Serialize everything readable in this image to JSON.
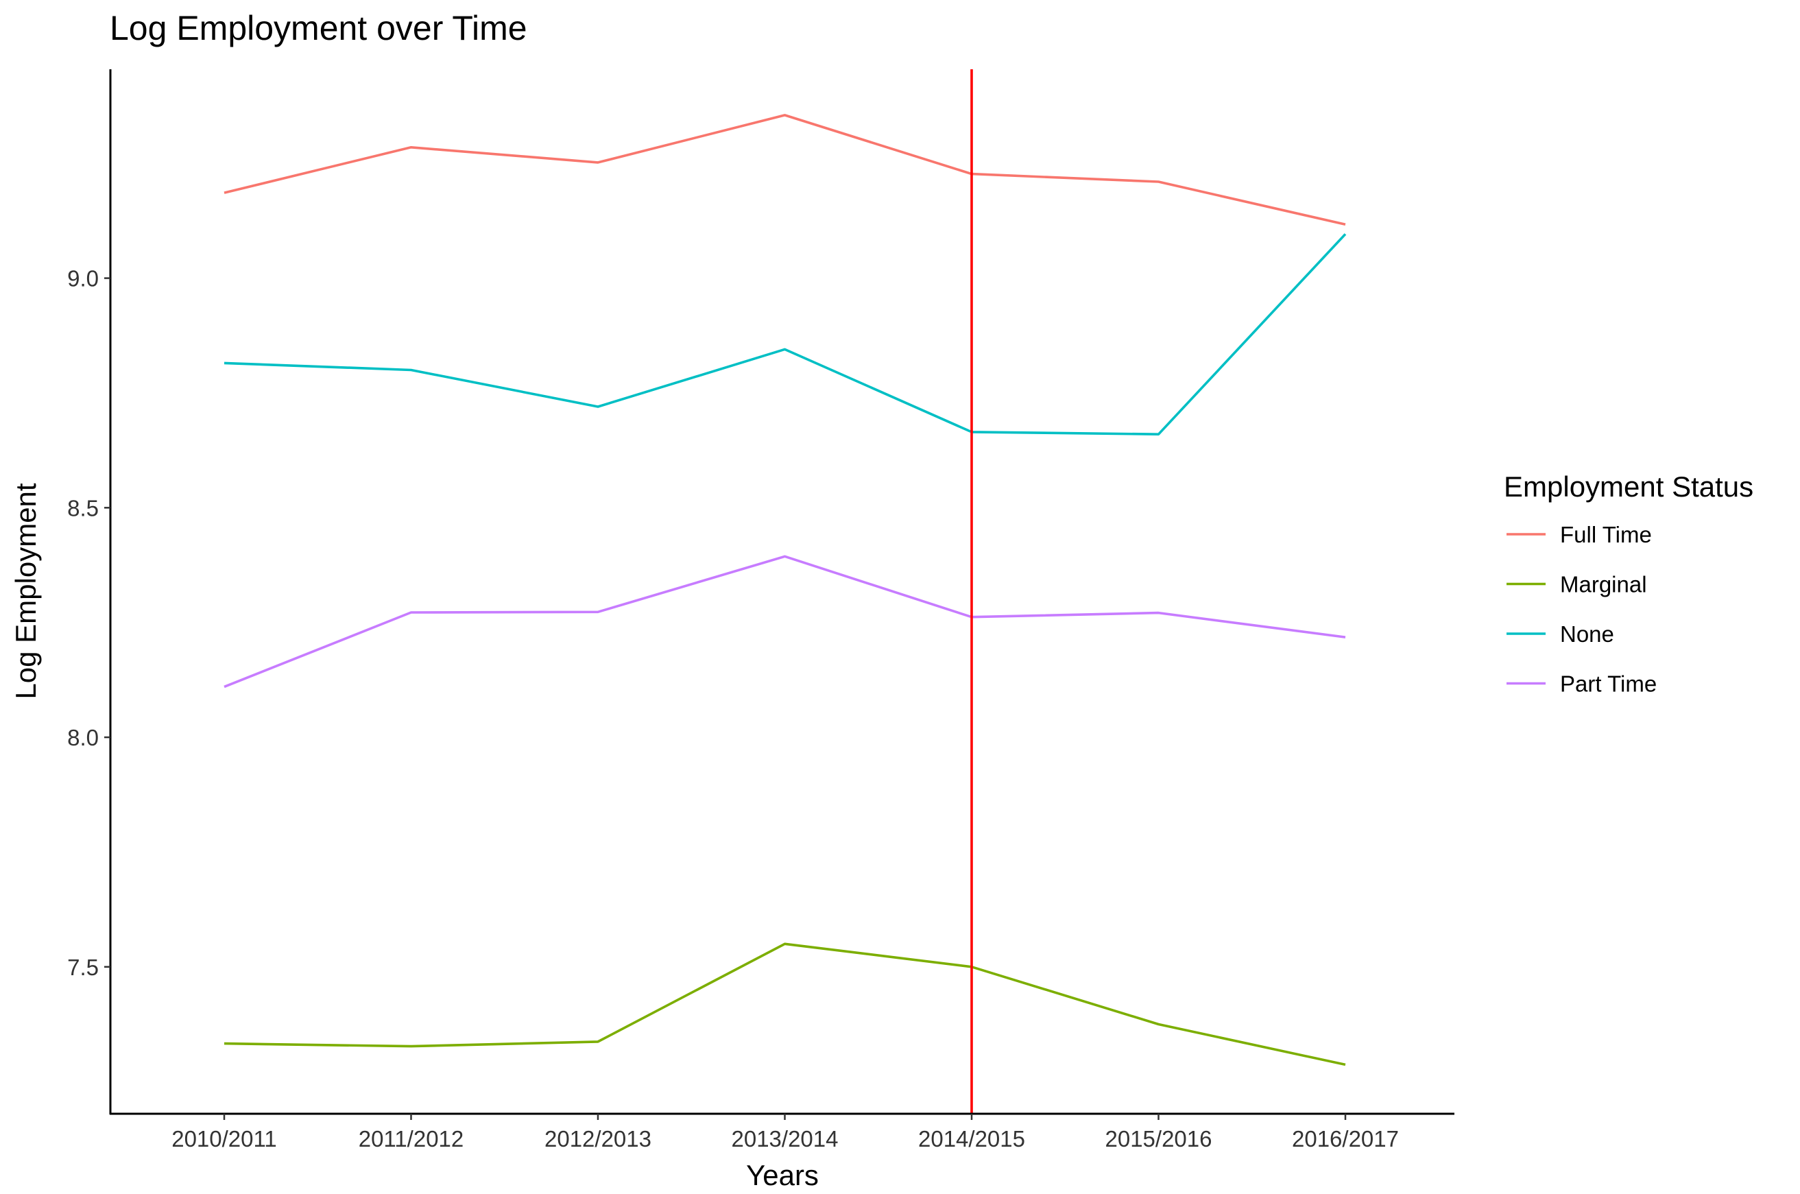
{
  "chart_data": {
    "type": "line",
    "title": "Log Employment over Time",
    "xlabel": "Years",
    "ylabel": "Log Employment",
    "categories": [
      "2010/2011",
      "2011/2012",
      "2012/2013",
      "2013/2014",
      "2014/2015",
      "2015/2016",
      "2016/2017"
    ],
    "ylim": [
      7.18,
      9.455
    ],
    "yticks": [
      7.5,
      8.0,
      8.5,
      9.0
    ],
    "ytick_labels": [
      "7.5",
      "8.0",
      "8.5",
      "9.0"
    ],
    "grid": false,
    "legend": {
      "title": "Employment Status",
      "placement": "right"
    },
    "series": [
      {
        "name": "Full Time",
        "color": "#F8766D",
        "values": [
          9.186,
          9.285,
          9.252,
          9.355,
          9.227,
          9.21,
          9.117
        ]
      },
      {
        "name": "Marginal",
        "color": "#7CAE00",
        "values": [
          7.333,
          7.327,
          7.337,
          7.55,
          7.5,
          7.375,
          7.287
        ]
      },
      {
        "name": "None",
        "color": "#00BFC4",
        "values": [
          8.815,
          8.8,
          8.72,
          8.845,
          8.665,
          8.66,
          9.096
        ]
      },
      {
        "name": "Part Time",
        "color": "#C77CFF",
        "values": [
          8.11,
          8.272,
          8.273,
          8.394,
          8.262,
          8.271,
          8.218
        ]
      }
    ],
    "annotations": [
      {
        "type": "vline",
        "at": "2014/2015",
        "color": "#FF0000"
      }
    ]
  }
}
